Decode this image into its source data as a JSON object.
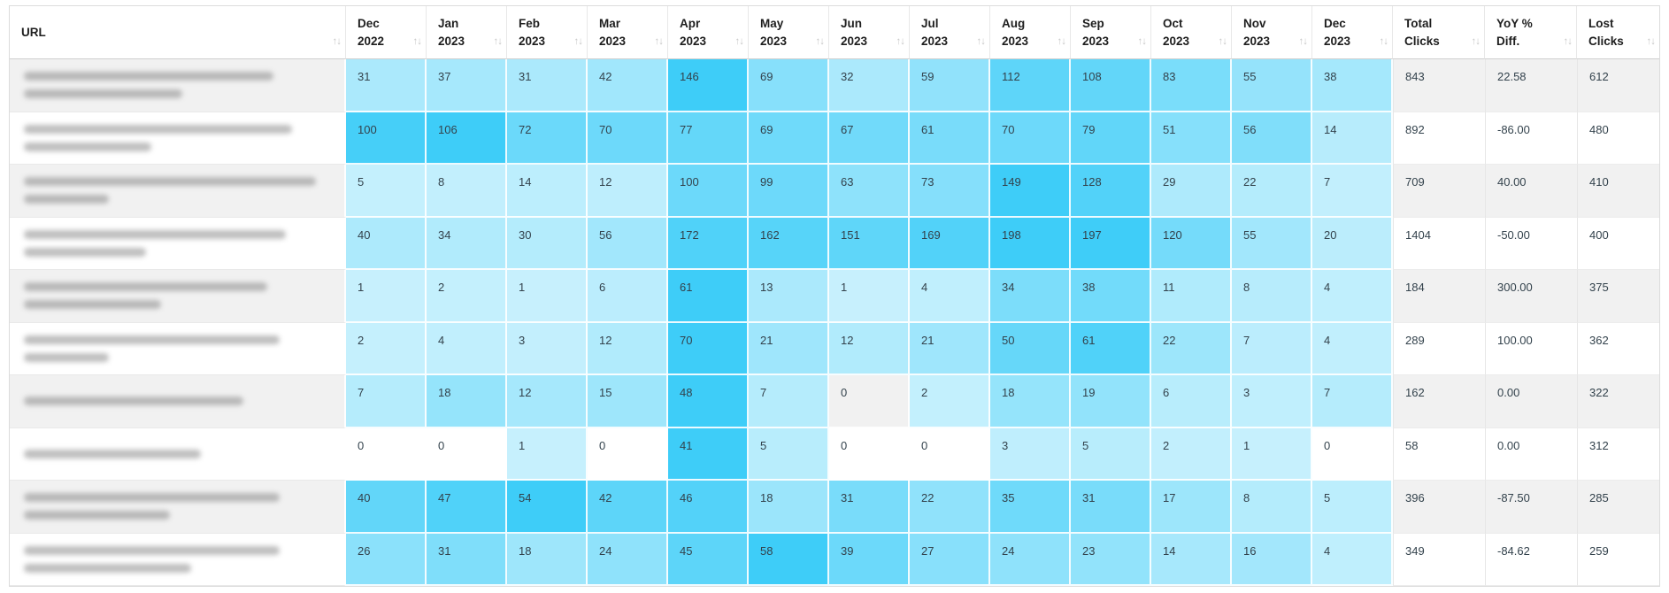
{
  "colors": {
    "heat_min": "#c9f1fd",
    "heat_max": "#3ecdf8",
    "row_stripe": "#f1f1f1",
    "header_text": "#1e1e1e",
    "cell_text": "#33424c",
    "sort_icon": "#c7c7c7"
  },
  "table": {
    "url_header": "URL",
    "sort_glyph": "↑↓",
    "month_columns": [
      [
        "Dec",
        "2022"
      ],
      [
        "Jan",
        "2023"
      ],
      [
        "Feb",
        "2023"
      ],
      [
        "Mar",
        "2023"
      ],
      [
        "Apr",
        "2023"
      ],
      [
        "May",
        "2023"
      ],
      [
        "Jun",
        "2023"
      ],
      [
        "Jul",
        "2023"
      ],
      [
        "Aug",
        "2023"
      ],
      [
        "Sep",
        "2023"
      ],
      [
        "Oct",
        "2023"
      ],
      [
        "Nov",
        "2023"
      ],
      [
        "Dec",
        "2023"
      ]
    ],
    "summary_columns": [
      [
        "Total",
        "Clicks"
      ],
      [
        "YoY %",
        "Diff."
      ],
      [
        "Lost",
        "Clicks"
      ]
    ],
    "rows": [
      {
        "url_blur_line_widths_pct": [
          82,
          52
        ],
        "monthly": [
          31,
          37,
          31,
          42,
          146,
          69,
          32,
          59,
          112,
          108,
          83,
          55,
          38
        ],
        "total": "843",
        "yoy": "22.58",
        "lost": "612"
      },
      {
        "url_blur_line_widths_pct": [
          88,
          42
        ],
        "monthly": [
          100,
          106,
          72,
          70,
          77,
          69,
          67,
          61,
          70,
          79,
          51,
          56,
          14
        ],
        "total": "892",
        "yoy": "-86.00",
        "lost": "480"
      },
      {
        "url_blur_line_widths_pct": [
          96,
          28
        ],
        "monthly": [
          5,
          8,
          14,
          12,
          100,
          99,
          63,
          73,
          149,
          128,
          29,
          22,
          7
        ],
        "total": "709",
        "yoy": "40.00",
        "lost": "410"
      },
      {
        "url_blur_line_widths_pct": [
          86,
          40
        ],
        "monthly": [
          40,
          34,
          30,
          56,
          172,
          162,
          151,
          169,
          198,
          197,
          120,
          55,
          20
        ],
        "total": "1404",
        "yoy": "-50.00",
        "lost": "400"
      },
      {
        "url_blur_line_widths_pct": [
          80,
          45
        ],
        "monthly": [
          1,
          2,
          1,
          6,
          61,
          13,
          1,
          4,
          34,
          38,
          11,
          8,
          4
        ],
        "total": "184",
        "yoy": "300.00",
        "lost": "375"
      },
      {
        "url_blur_line_widths_pct": [
          84,
          28
        ],
        "monthly": [
          2,
          4,
          3,
          12,
          70,
          21,
          12,
          21,
          50,
          61,
          22,
          7,
          4
        ],
        "total": "289",
        "yoy": "100.00",
        "lost": "362"
      },
      {
        "url_blur_line_widths_pct": [
          72
        ],
        "monthly": [
          7,
          18,
          12,
          15,
          48,
          7,
          0,
          2,
          18,
          19,
          6,
          3,
          7
        ],
        "total": "162",
        "yoy": "0.00",
        "lost": "322"
      },
      {
        "url_blur_line_widths_pct": [
          58
        ],
        "monthly": [
          0,
          0,
          1,
          0,
          41,
          5,
          0,
          0,
          3,
          5,
          2,
          1,
          0
        ],
        "total": "58",
        "yoy": "0.00",
        "lost": "312"
      },
      {
        "url_blur_line_widths_pct": [
          84,
          48
        ],
        "monthly": [
          40,
          47,
          54,
          42,
          46,
          18,
          31,
          22,
          35,
          31,
          17,
          8,
          5
        ],
        "total": "396",
        "yoy": "-87.50",
        "lost": "285"
      },
      {
        "url_blur_line_widths_pct": [
          84,
          55
        ],
        "monthly": [
          26,
          31,
          18,
          24,
          45,
          58,
          39,
          27,
          24,
          23,
          14,
          16,
          4
        ],
        "total": "349",
        "yoy": "-84.62",
        "lost": "259"
      }
    ]
  }
}
